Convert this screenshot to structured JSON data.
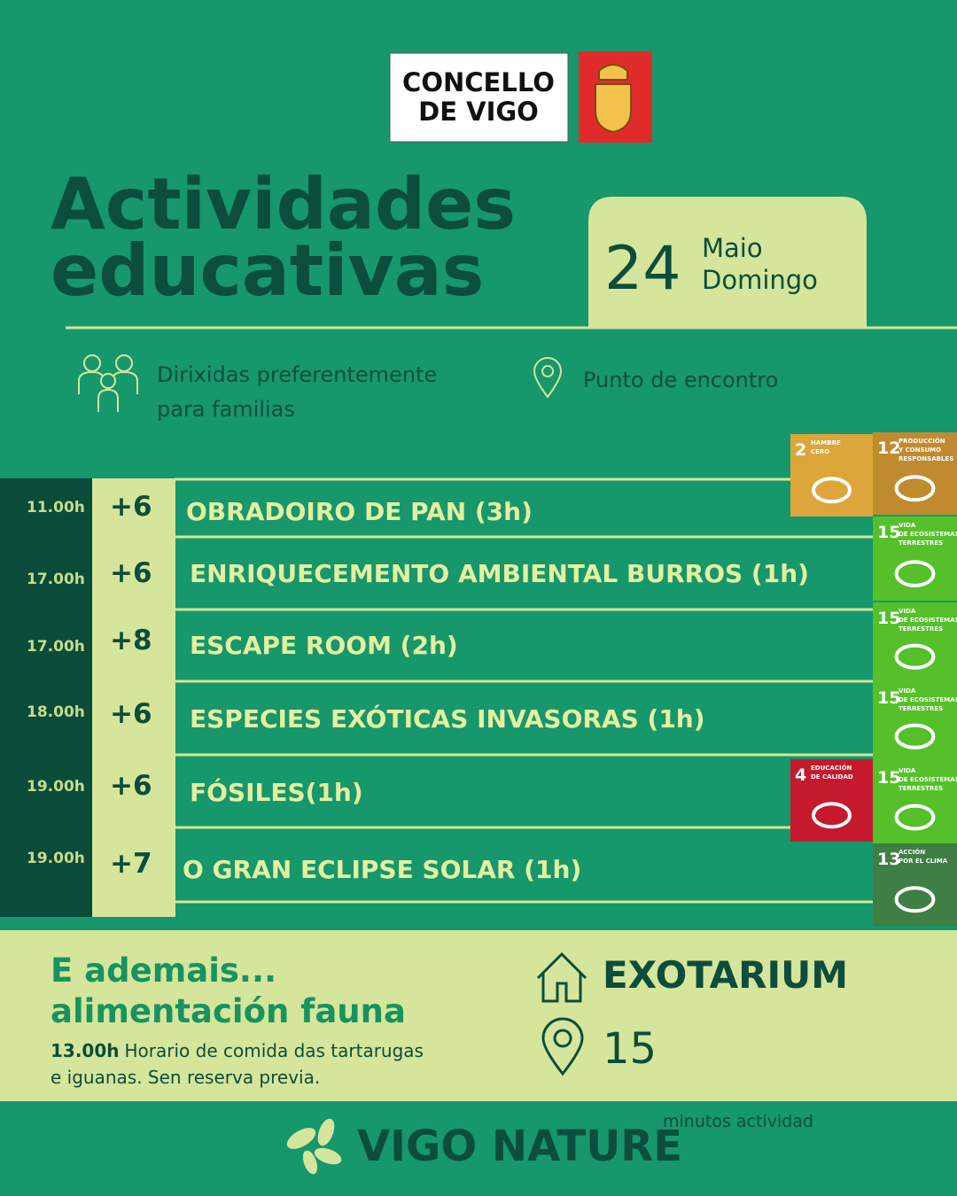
{
  "header": {
    "logo": [
      "CONCELLO",
      "DE VIGO"
    ],
    "title": [
      "Actividades",
      "educativas"
    ],
    "date": {
      "day": "24",
      "month": "Maio",
      "weekday": "Domingo"
    }
  },
  "info": {
    "audience": [
      "Dirixidas preferentemente",
      "para familias"
    ],
    "meeting": "Punto de encontro"
  },
  "activities": [
    {
      "time": "11.00h",
      "age": "+6",
      "name": "OBRADOIRO DE PAN (3h)"
    },
    {
      "time": "17.00h",
      "age": "+6",
      "name": "ENRIQUECEMENTO AMBIENTAL BURROS (1h)"
    },
    {
      "time": "17.00h",
      "age": "+8",
      "name": "ESCAPE ROOM (2h)"
    },
    {
      "time": "18.00h",
      "age": "+6",
      "name": "ESPECIES EXÓTICAS INVASORAS (1h)"
    },
    {
      "time": "19.00h",
      "age": "+6",
      "name": "FÓSILES(1h)"
    },
    {
      "time": "19.00h",
      "age": "+7",
      "name": "O GRAN ECLIPSE SOLAR (1h)"
    }
  ],
  "sdg_badges": [
    {
      "number": "2",
      "label": [
        "HAMBRE",
        "CERO"
      ]
    },
    {
      "number": "12",
      "label": [
        "PRODUCCIÓN",
        "Y CONSUMO",
        "RESPONSABLES"
      ]
    },
    {
      "number": "15",
      "label": [
        "VIDA",
        "DE ECOSISTEMAS",
        "TERRESTRES"
      ]
    },
    {
      "number": "15",
      "label": [
        "VIDA",
        "DE ECOSISTEMAS",
        "TERRESTRES"
      ]
    },
    {
      "number": "15",
      "label": [
        "VIDA",
        "DE ECOSISTEMAS",
        "TERRESTRES"
      ]
    },
    {
      "number": "15",
      "label": [
        "VIDA",
        "DE ECOSISTEMAS",
        "TERRESTRES"
      ]
    },
    {
      "number": "4",
      "label": [
        "EDUCACIÓN",
        "DE CALIDAD"
      ]
    },
    {
      "number": "13",
      "label": [
        "ACCIÓN",
        "POR EL CLIMA"
      ]
    }
  ],
  "extra": {
    "heading": [
      "E ademais...",
      "alimentación fauna"
    ],
    "time": "13.00h",
    "text": [
      "Horario de comida das tartarugas",
      "e iguanas. Sen reserva previa."
    ],
    "location": "EXOTARIUM",
    "meeting_point": "15"
  },
  "footer": {
    "brand": "VIGO NATURE",
    "note": "minutos actividad"
  }
}
